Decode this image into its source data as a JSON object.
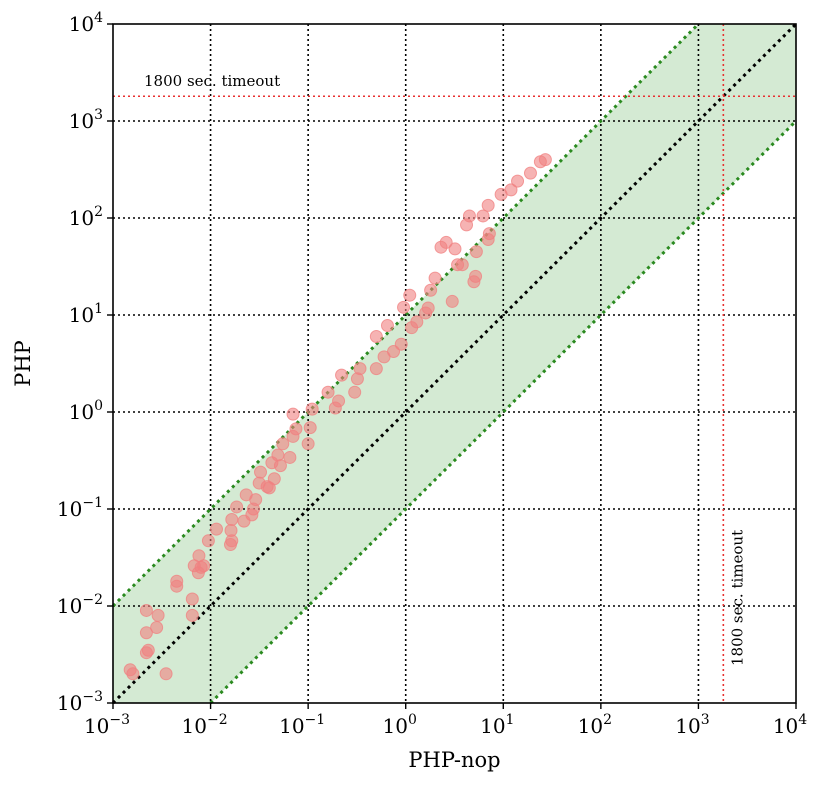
{
  "chart_data": {
    "type": "scatter",
    "xscale": "log",
    "yscale": "log",
    "xlim": [
      0.001,
      10000
    ],
    "ylim": [
      0.001,
      10000
    ],
    "xlabel": "PHP-nop",
    "ylabel": "PHP",
    "grid": true,
    "xticks": [
      {
        "base": "10",
        "exp": "−3"
      },
      {
        "base": "10",
        "exp": "−2"
      },
      {
        "base": "10",
        "exp": "−1"
      },
      {
        "base": "10",
        "exp": "0"
      },
      {
        "base": "10",
        "exp": "1"
      },
      {
        "base": "10",
        "exp": "2"
      },
      {
        "base": "10",
        "exp": "3"
      },
      {
        "base": "10",
        "exp": "4"
      }
    ],
    "yticks": [
      {
        "base": "10",
        "exp": "−3"
      },
      {
        "base": "10",
        "exp": "−2"
      },
      {
        "base": "10",
        "exp": "−1"
      },
      {
        "base": "10",
        "exp": "0"
      },
      {
        "base": "10",
        "exp": "1"
      },
      {
        "base": "10",
        "exp": "2"
      },
      {
        "base": "10",
        "exp": "3"
      },
      {
        "base": "10",
        "exp": "4"
      }
    ],
    "tick_values": [
      0.001,
      0.01,
      0.1,
      1,
      10,
      100,
      1000,
      10000
    ],
    "band": {
      "lower_factor": 0.1,
      "upper_factor": 10,
      "fill": "#d4ead3",
      "edge": "#2a8a1f"
    },
    "diagonal": {
      "factor": 1,
      "color": "#000000"
    },
    "timeout": {
      "value": 1800,
      "color": "#e83030",
      "label_h": "1800 sec. timeout",
      "label_v": "1800 sec. timeout"
    },
    "marker_color": "#f08080",
    "points": [
      [
        0.0015,
        0.0022
      ],
      [
        0.0016,
        0.002
      ],
      [
        0.0022,
        0.0033
      ],
      [
        0.0023,
        0.0035
      ],
      [
        0.0022,
        0.0053
      ],
      [
        0.0022,
        0.009
      ],
      [
        0.0028,
        0.006
      ],
      [
        0.0029,
        0.008
      ],
      [
        0.0035,
        0.002
      ],
      [
        0.0045,
        0.016
      ],
      [
        0.0045,
        0.018
      ],
      [
        0.0065,
        0.008
      ],
      [
        0.0065,
        0.0118
      ],
      [
        0.0068,
        0.026
      ],
      [
        0.0075,
        0.022
      ],
      [
        0.0076,
        0.033
      ],
      [
        0.008,
        0.025
      ],
      [
        0.0085,
        0.026
      ],
      [
        0.0095,
        0.047
      ],
      [
        0.0115,
        0.062
      ],
      [
        0.016,
        0.043
      ],
      [
        0.0165,
        0.047
      ],
      [
        0.0162,
        0.06
      ],
      [
        0.0165,
        0.078
      ],
      [
        0.0185,
        0.105
      ],
      [
        0.022,
        0.075
      ],
      [
        0.0232,
        0.14
      ],
      [
        0.0265,
        0.087
      ],
      [
        0.0275,
        0.1
      ],
      [
        0.029,
        0.125
      ],
      [
        0.0315,
        0.185
      ],
      [
        0.0325,
        0.24
      ],
      [
        0.038,
        0.17
      ],
      [
        0.04,
        0.165
      ],
      [
        0.0425,
        0.3
      ],
      [
        0.045,
        0.205
      ],
      [
        0.049,
        0.36
      ],
      [
        0.052,
        0.28
      ],
      [
        0.055,
        0.47
      ],
      [
        0.065,
        0.34
      ],
      [
        0.07,
        0.56
      ],
      [
        0.075,
        0.67
      ],
      [
        0.07,
        0.95
      ],
      [
        0.1,
        0.47
      ],
      [
        0.105,
        0.69
      ],
      [
        0.11,
        1.07
      ],
      [
        0.16,
        1.6
      ],
      [
        0.19,
        1.1
      ],
      [
        0.205,
        1.3
      ],
      [
        0.22,
        2.4
      ],
      [
        0.3,
        1.6
      ],
      [
        0.32,
        2.2
      ],
      [
        0.34,
        2.8
      ],
      [
        0.5,
        2.8
      ],
      [
        0.5,
        6.0
      ],
      [
        0.6,
        3.7
      ],
      [
        0.65,
        7.8
      ],
      [
        0.75,
        4.2
      ],
      [
        0.9,
        5.0
      ],
      [
        0.95,
        12.0
      ],
      [
        1.1,
        16.0
      ],
      [
        1.15,
        7.4
      ],
      [
        1.3,
        8.5
      ],
      [
        1.6,
        10.5
      ],
      [
        1.7,
        11.8
      ],
      [
        1.8,
        18.0
      ],
      [
        2.0,
        24.0
      ],
      [
        2.3,
        50.0
      ],
      [
        2.6,
        56.0
      ],
      [
        3.0,
        13.8
      ],
      [
        3.2,
        48.0
      ],
      [
        3.4,
        33.0
      ],
      [
        3.8,
        33.0
      ],
      [
        4.2,
        85.0
      ],
      [
        4.5,
        105.0
      ],
      [
        5.0,
        22.0
      ],
      [
        5.3,
        45.0
      ],
      [
        5.2,
        25.0
      ],
      [
        6.2,
        105.0
      ],
      [
        7.0,
        135.0
      ],
      [
        7.0,
        60.0
      ],
      [
        7.2,
        69.0
      ],
      [
        9.5,
        175.0
      ],
      [
        12.0,
        195.0
      ],
      [
        14.0,
        240.0
      ],
      [
        19.0,
        290.0
      ],
      [
        24.0,
        380.0
      ],
      [
        27.0,
        400.0
      ]
    ]
  }
}
